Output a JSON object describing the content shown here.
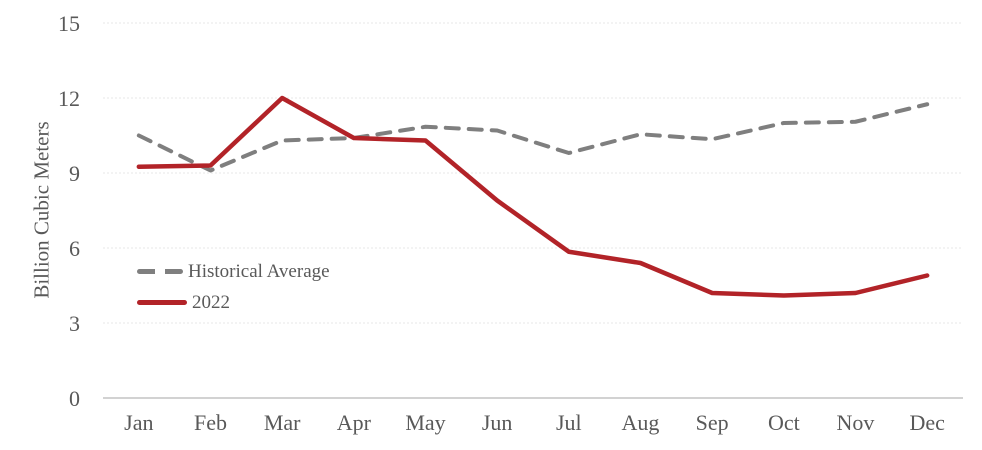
{
  "chart_data": {
    "type": "line",
    "title": "",
    "xlabel": "",
    "ylabel": "Billion Cubic Meters",
    "categories": [
      "Jan",
      "Feb",
      "Mar",
      "Apr",
      "May",
      "Jun",
      "Jul",
      "Aug",
      "Sep",
      "Oct",
      "Nov",
      "Dec"
    ],
    "yticks": [
      0,
      3,
      6,
      9,
      12,
      15
    ],
    "ylim": [
      0,
      15
    ],
    "grid": true,
    "legend_position": "inside-left",
    "series": [
      {
        "name": "Historical Average",
        "style": "dashed",
        "color": "#7f7f7f",
        "values": [
          10.5,
          9.1,
          10.3,
          10.4,
          10.85,
          10.7,
          9.8,
          10.55,
          10.35,
          11.0,
          11.05,
          11.75
        ]
      },
      {
        "name": "2022",
        "style": "solid",
        "color": "#b22328",
        "values": [
          9.25,
          9.3,
          12.0,
          10.4,
          10.3,
          7.9,
          5.85,
          5.4,
          4.2,
          4.1,
          4.2,
          4.9
        ]
      }
    ]
  },
  "colors": {
    "tick_text": "#595959",
    "gridline": "#e7e7e7",
    "axis_line": "#c4c4c4"
  }
}
